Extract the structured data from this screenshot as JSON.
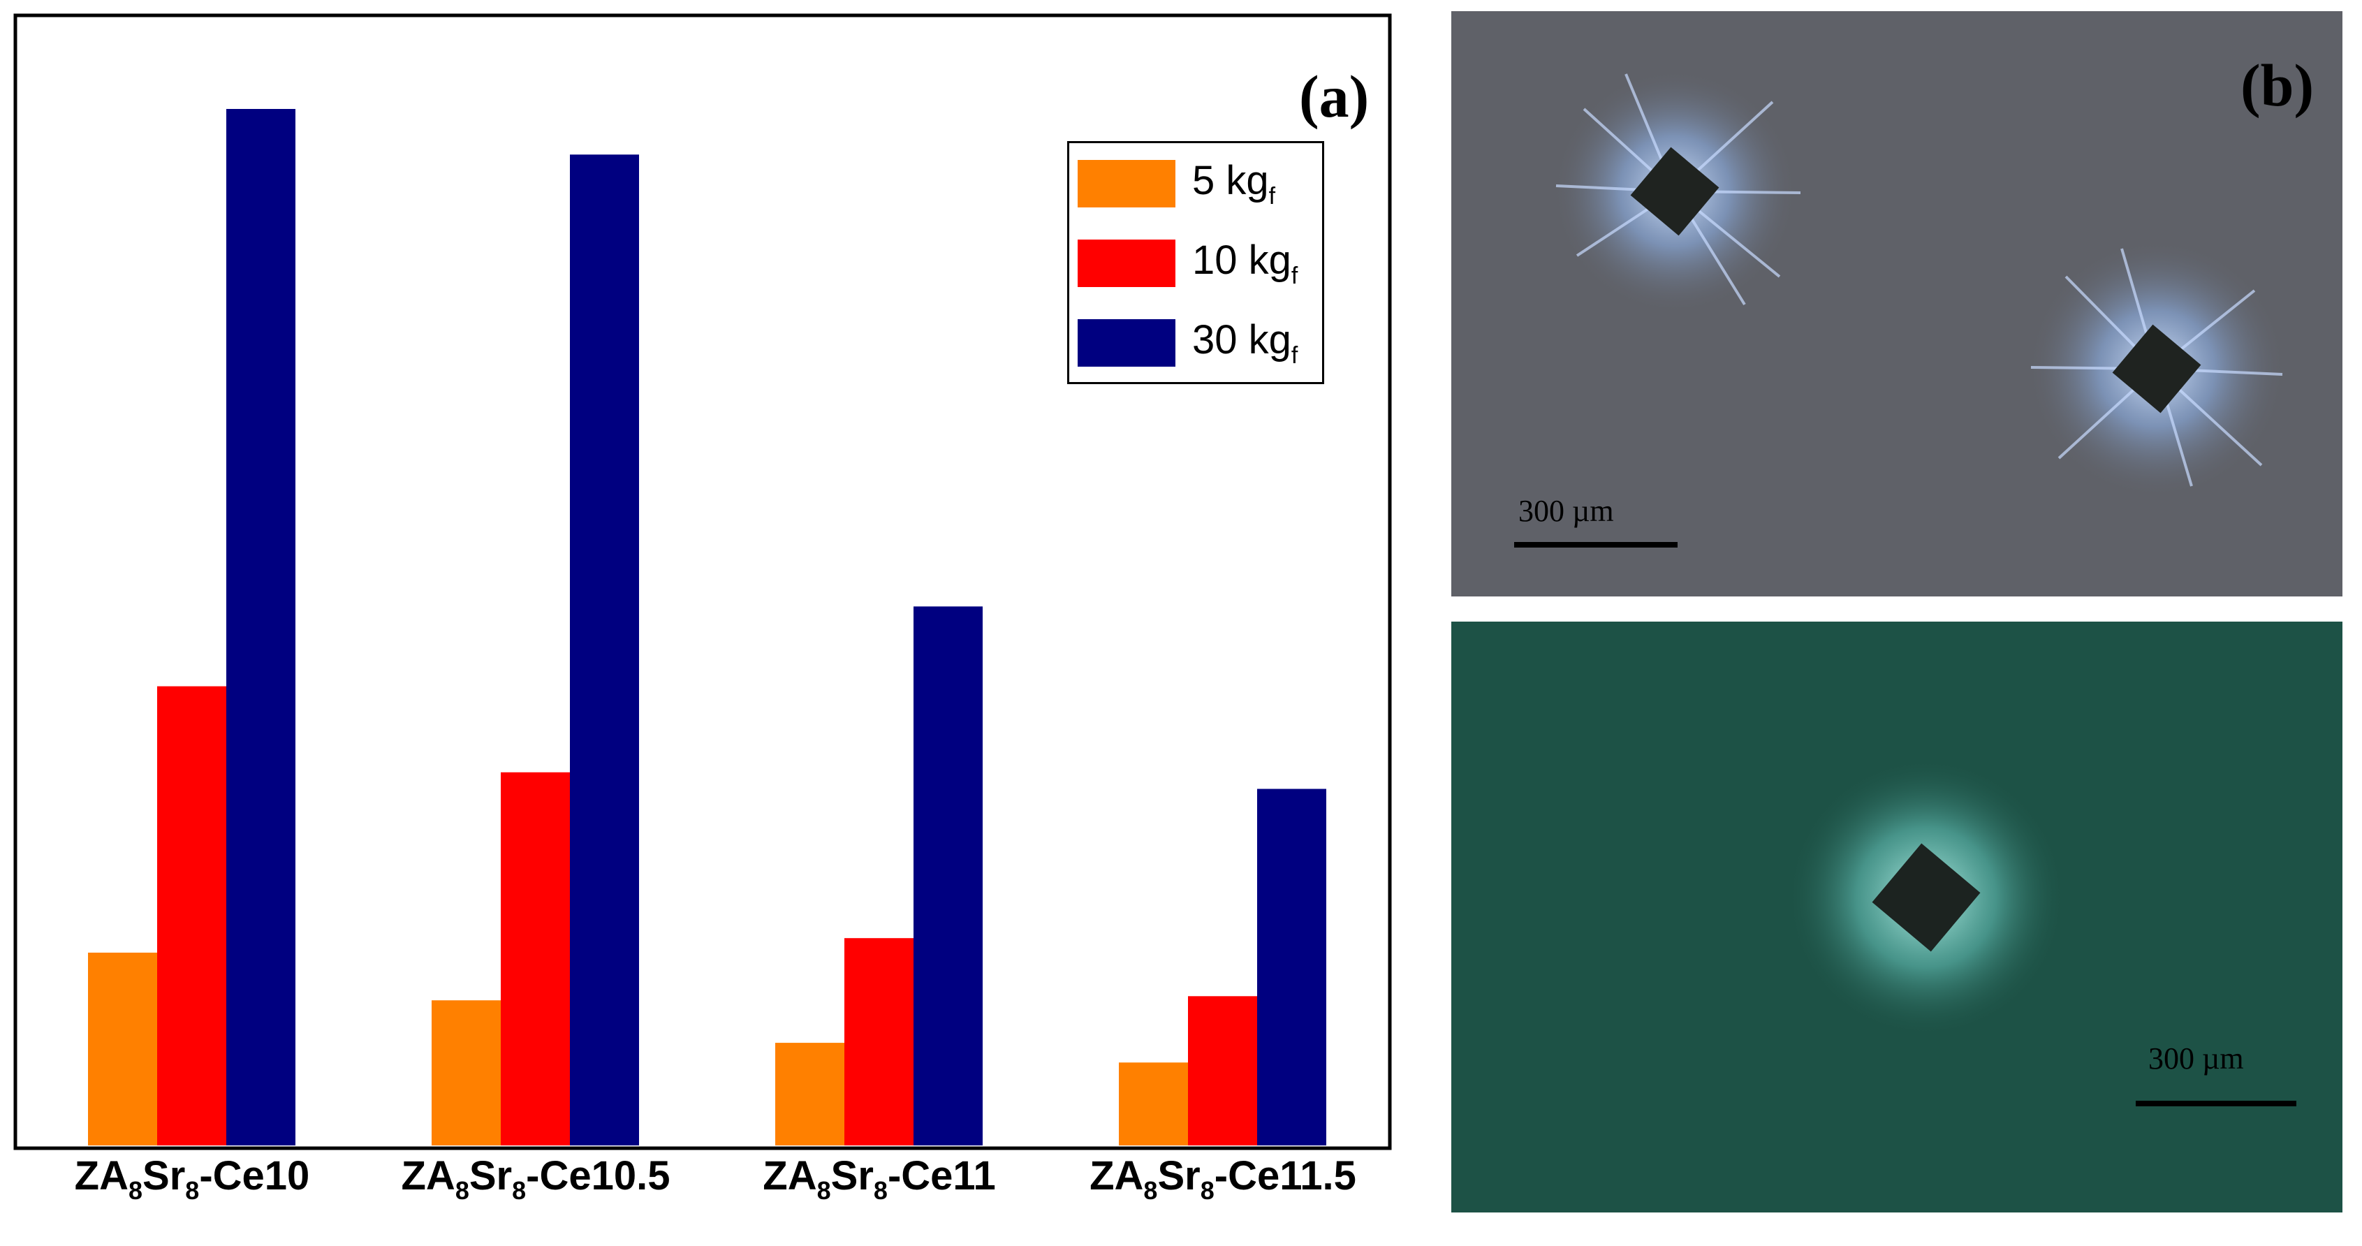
{
  "chart_data": {
    "type": "bar",
    "categories": [
      {
        "base": "ZA",
        "sub1": "8",
        "mid": "Sr",
        "sub2": "8",
        "suffix": "-Ce10"
      },
      {
        "base": "ZA",
        "sub1": "8",
        "mid": "Sr",
        "sub2": "8",
        "suffix": "-Ce10.5"
      },
      {
        "base": "ZA",
        "sub1": "8",
        "mid": "Sr",
        "sub2": "8",
        "suffix": "-Ce11"
      },
      {
        "base": "ZA",
        "sub1": "8",
        "mid": "Sr",
        "sub2": "8",
        "suffix": "-Ce11.5"
      }
    ],
    "series": [
      {
        "name": "5 kg",
        "sub": "f",
        "color": "#ff8000",
        "values": [
          18.6,
          14.0,
          9.9,
          8.0
        ]
      },
      {
        "name": "10 kg",
        "sub": "f",
        "color": "#ff0000",
        "values": [
          44.3,
          36.0,
          20.0,
          14.4
        ]
      },
      {
        "name": "30 kg",
        "sub": "f",
        "color": "#000080",
        "values": [
          100.0,
          95.6,
          52.0,
          34.4
        ]
      }
    ],
    "ylim": [
      0,
      108
    ],
    "grid": false,
    "legend_position": "top-right",
    "panel_label": "(a)"
  },
  "micrographs": {
    "panel_label": "(b)",
    "top": {
      "scale_label": "300 µm",
      "background": "#5f6168"
    },
    "bottom": {
      "scale_label": "300 µm",
      "background": "#1d5246"
    }
  }
}
